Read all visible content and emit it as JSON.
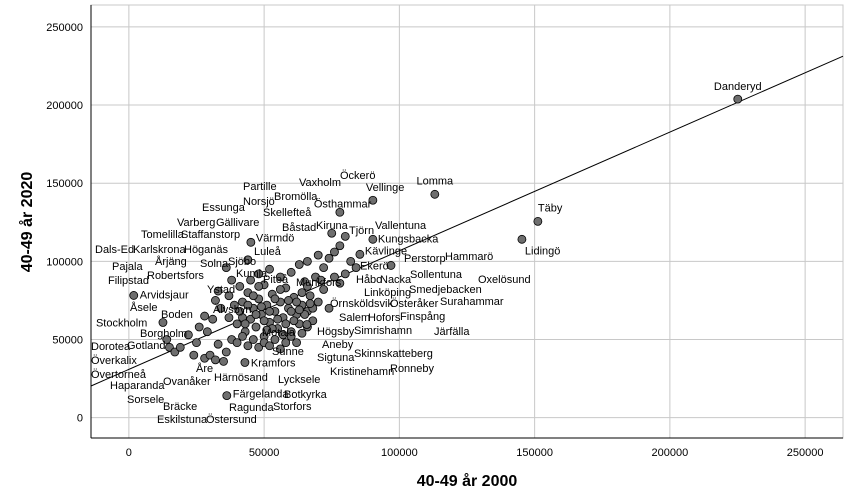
{
  "chart_data": {
    "type": "scatter",
    "title": "",
    "xlabel": "40-49 år 2000",
    "ylabel": "40-49 år 2020",
    "xlim": [
      -14000,
      264000
    ],
    "ylim": [
      -13000,
      264000
    ],
    "xticks": [
      "0",
      "50000",
      "100000",
      "150000",
      "200000",
      "250000"
    ],
    "yticks": [
      "0",
      "50000",
      "100000",
      "150000",
      "200000",
      "250000"
    ],
    "xtick_values": [
      0,
      50000,
      100000,
      150000,
      200000,
      250000
    ],
    "ytick_values": [
      0,
      50000,
      100000,
      150000,
      200000,
      250000
    ],
    "grid": true,
    "colors": {
      "marker": "#6e6e6e",
      "marker_edge": "#000000",
      "grid": "#c8c8c8",
      "line": "#000000"
    },
    "fit_line": {
      "intercept": 30900,
      "slope": 0.759
    },
    "labeled_points": [
      {
        "label": "Danderyd",
        "x": 225100,
        "y": 203800
      },
      {
        "label": "Lomma",
        "x": 113100,
        "y": 142900
      },
      {
        "label": "Täby",
        "x": 151200,
        "y": 125600
      },
      {
        "label": "Lidingö",
        "x": 145300,
        "y": 114100
      },
      {
        "label": "Vellinge",
        "x": 90200,
        "y": 139100
      },
      {
        "label": "Östhammar",
        "x": 78000,
        "y": 131400
      },
      {
        "label": "Kungsbacka",
        "x": 90200,
        "y": 114100
      },
      {
        "label": "Kävlinge",
        "x": 85400,
        "y": 104500
      },
      {
        "label": "Ekerö",
        "x": 96900,
        "y": 97400
      },
      {
        "label": "Arvidsjaur",
        "x": 1800,
        "y": 78200
      },
      {
        "label": "Stockholm",
        "x": 12600,
        "y": 60900
      },
      {
        "label": "Färgelanda",
        "x": 36200,
        "y": 14100
      },
      {
        "label": "Värmdö",
        "x": 45100,
        "y": 112200
      },
      {
        "label": "Kramfors",
        "x": 42900,
        "y": 35300
      }
    ],
    "other_labels": [
      "Öckerö",
      "Vaxholm",
      "Partille",
      "Bromölla",
      "Norsjö",
      "Essunga",
      "Skellefteå",
      "Varberg",
      "Gällivare",
      "Båstad",
      "Kiruna",
      "Tjörn",
      "Vallentuna",
      "Tomelilla",
      "Staffanstorp",
      "Dals-Ed",
      "Karlskrona",
      "Höganäs",
      "Luleå",
      "Perstorp",
      "Hammarö",
      "Pajala",
      "Årjäng",
      "Solna",
      "Sjöbo",
      "Håbo",
      "Nacka",
      "Sollentuna",
      "Oxelösund",
      "Filipstad",
      "Robertsfors",
      "Kumla",
      "Piteå",
      "Munkfors",
      "Ystad",
      "Linköping",
      "Smedjebacken",
      "Örnsköldsvik",
      "Österåker",
      "Surahammar",
      "Åsele",
      "Älvsbyn",
      "Salem",
      "Hofors",
      "Finspång",
      "Boden",
      "Högsby",
      "Simrishamn",
      "Järfälla",
      "Borgholm",
      "Motala",
      "Aneby",
      "Dorotea",
      "Gotland",
      "Sunne",
      "Sigtuna",
      "Skinnskatteberg",
      "Överkalix",
      "Åre",
      "Kristinehamn",
      "Ronneby",
      "Övertorneå",
      "Ovanåker",
      "Haparanda",
      "Härnösand",
      "Lycksele",
      "Sorsele",
      "Botkyrka",
      "Bräcke",
      "Ragunda",
      "Storfors",
      "Eskilstuna",
      "Östersund"
    ],
    "points": [
      [
        14000,
        50000
      ],
      [
        15000,
        45000
      ],
      [
        17000,
        42000
      ],
      [
        19000,
        45000
      ],
      [
        24000,
        40000
      ],
      [
        22000,
        53000
      ],
      [
        28000,
        38000
      ],
      [
        30000,
        40000
      ],
      [
        32000,
        37000
      ],
      [
        29000,
        55000
      ],
      [
        33000,
        47000
      ],
      [
        26000,
        58000
      ],
      [
        35000,
        36000
      ],
      [
        36000,
        42000
      ],
      [
        31000,
        63000
      ],
      [
        34000,
        70000
      ],
      [
        37000,
        78000
      ],
      [
        28000,
        65000
      ],
      [
        25000,
        48000
      ],
      [
        38000,
        50000
      ],
      [
        40000,
        60000
      ],
      [
        41000,
        68000
      ],
      [
        42000,
        74000
      ],
      [
        43000,
        55000
      ],
      [
        44000,
        80000
      ],
      [
        45000,
        63000
      ],
      [
        46000,
        70000
      ],
      [
        47000,
        58000
      ],
      [
        48000,
        76000
      ],
      [
        49000,
        66000
      ],
      [
        50000,
        85000
      ],
      [
        50000,
        52000
      ],
      [
        51000,
        72000
      ],
      [
        52000,
        61000
      ],
      [
        53000,
        79000
      ],
      [
        54000,
        68000
      ],
      [
        55000,
        57000
      ],
      [
        56000,
        74000
      ],
      [
        57000,
        64000
      ],
      [
        58000,
        83000
      ],
      [
        59000,
        70000
      ],
      [
        60000,
        55000
      ],
      [
        61000,
        77000
      ],
      [
        62000,
        66000
      ],
      [
        63000,
        60000
      ],
      [
        64000,
        72000
      ],
      [
        65000,
        87000
      ],
      [
        66000,
        68000
      ],
      [
        67000,
        78000
      ],
      [
        68000,
        62000
      ],
      [
        70000,
        74000
      ],
      [
        72000,
        82000
      ],
      [
        74000,
        70000
      ],
      [
        76000,
        90000
      ],
      [
        78000,
        86000
      ],
      [
        80000,
        92000
      ],
      [
        40000,
        48000
      ],
      [
        42000,
        52000
      ],
      [
        44000,
        46000
      ],
      [
        46000,
        50000
      ],
      [
        48000,
        45000
      ],
      [
        50000,
        48000
      ],
      [
        52000,
        46000
      ],
      [
        54000,
        50000
      ],
      [
        56000,
        44000
      ],
      [
        58000,
        48000
      ],
      [
        60000,
        52000
      ],
      [
        62000,
        48000
      ],
      [
        64000,
        54000
      ],
      [
        66000,
        58000
      ],
      [
        45000,
        88000
      ],
      [
        48000,
        92000
      ],
      [
        52000,
        95000
      ],
      [
        56000,
        90000
      ],
      [
        60000,
        93000
      ],
      [
        63000,
        98000
      ],
      [
        66000,
        100000
      ],
      [
        70000,
        104000
      ],
      [
        72000,
        96000
      ],
      [
        74000,
        102000
      ],
      [
        76000,
        106000
      ],
      [
        78000,
        110000
      ],
      [
        80000,
        116000
      ],
      [
        75000,
        118000
      ],
      [
        82000,
        100000
      ],
      [
        84000,
        96000
      ],
      [
        69000,
        90000
      ],
      [
        71000,
        88000
      ],
      [
        42000,
        64000
      ],
      [
        44000,
        72000
      ],
      [
        46000,
        78000
      ],
      [
        48000,
        84000
      ],
      [
        50000,
        62000
      ],
      [
        52000,
        68000
      ],
      [
        54000,
        76000
      ],
      [
        56000,
        82000
      ],
      [
        58000,
        60000
      ],
      [
        60000,
        68000
      ],
      [
        62000,
        74000
      ],
      [
        64000,
        80000
      ],
      [
        66000,
        84000
      ],
      [
        68000,
        70000
      ],
      [
        47000,
        66000
      ],
      [
        53000,
        57000
      ],
      [
        57000,
        53000
      ],
      [
        61000,
        62000
      ],
      [
        65000,
        66000
      ],
      [
        49000,
        71000
      ],
      [
        55000,
        63000
      ],
      [
        59000,
        75000
      ],
      [
        63000,
        69000
      ],
      [
        67000,
        73000
      ],
      [
        43000,
        60000
      ],
      [
        51000,
        56000
      ],
      [
        41000,
        84000
      ],
      [
        38000,
        88000
      ],
      [
        36000,
        96000
      ],
      [
        33000,
        81000
      ],
      [
        39000,
        72000
      ],
      [
        37000,
        64000
      ],
      [
        44000,
        101000
      ],
      [
        32000,
        75000
      ],
      [
        65800,
        59600
      ]
    ]
  }
}
